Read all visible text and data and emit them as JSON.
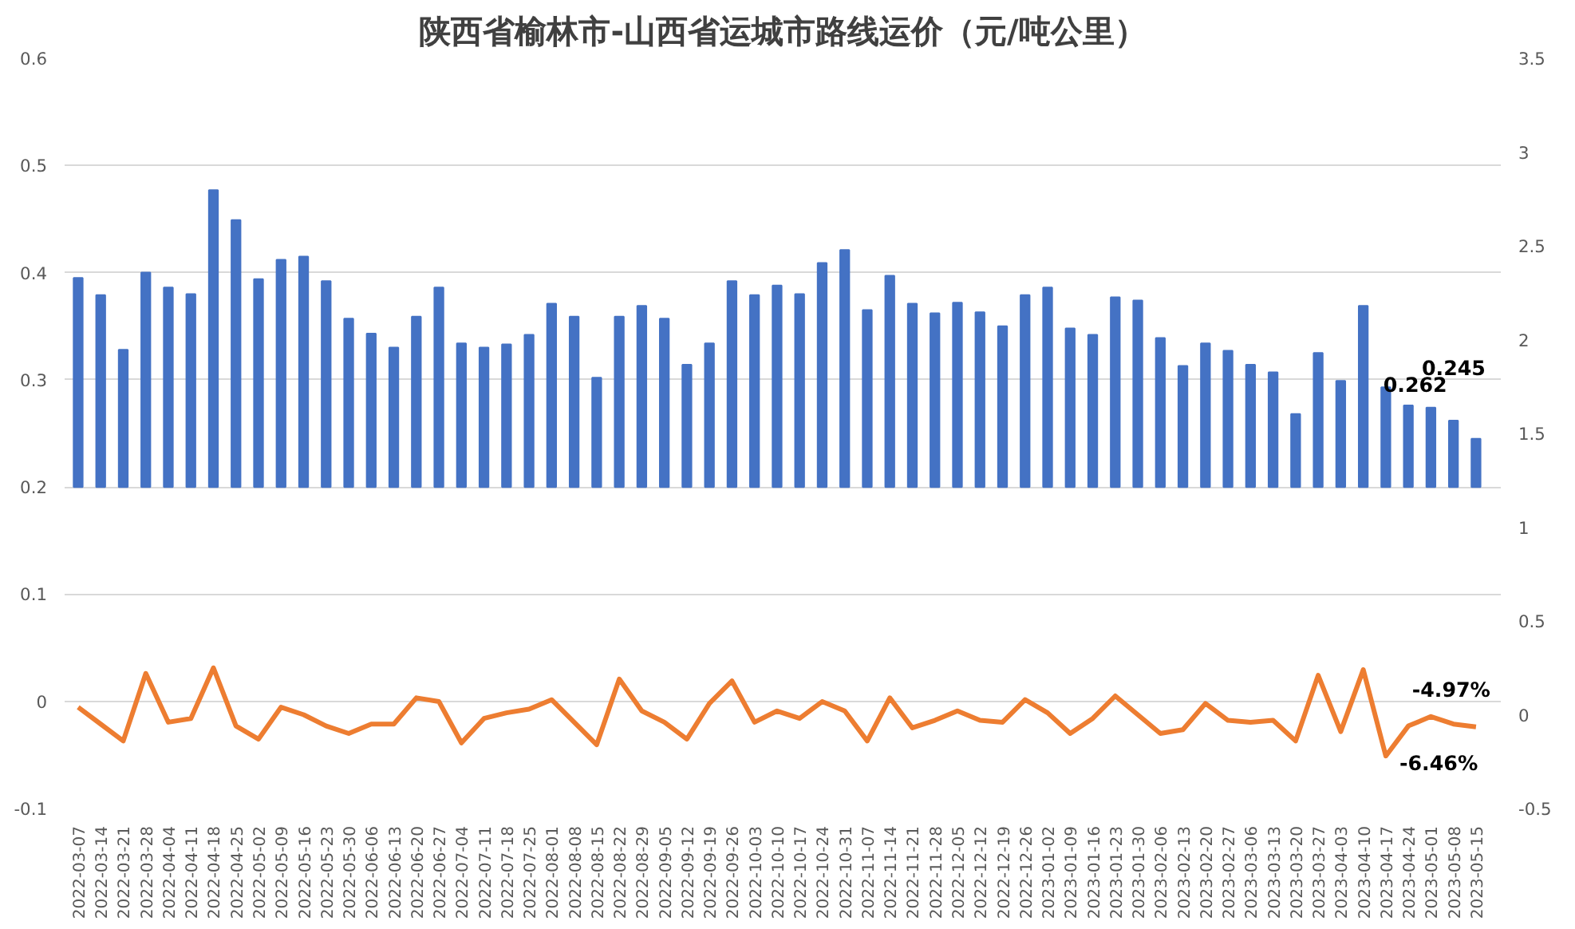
{
  "chart_data": {
    "type": "bar",
    "title": "陕西省榆林市-山西省运城市路线运价（元/吨公里）",
    "categories": [
      "2022-03-07",
      "2022-03-14",
      "2022-03-21",
      "2022-03-28",
      "2022-04-04",
      "2022-04-11",
      "2022-04-18",
      "2022-04-25",
      "2022-05-02",
      "2022-05-09",
      "2022-05-16",
      "2022-05-23",
      "2022-05-30",
      "2022-06-06",
      "2022-06-13",
      "2022-06-20",
      "2022-06-27",
      "2022-07-04",
      "2022-07-11",
      "2022-07-18",
      "2022-07-25",
      "2022-08-01",
      "2022-08-08",
      "2022-08-15",
      "2022-08-22",
      "2022-08-29",
      "2022-09-05",
      "2022-09-12",
      "2022-09-19",
      "2022-09-26",
      "2022-10-03",
      "2022-10-10",
      "2022-10-17",
      "2022-10-24",
      "2022-10-31",
      "2022-11-07",
      "2022-11-14",
      "2022-11-21",
      "2022-11-28",
      "2022-12-05",
      "2022-12-12",
      "2022-12-19",
      "2022-12-26",
      "2023-01-02",
      "2023-01-09",
      "2023-01-16",
      "2023-01-23",
      "2023-01-30",
      "2023-02-06",
      "2023-02-13",
      "2023-02-20",
      "2023-02-27",
      "2023-03-06",
      "2023-03-13",
      "2023-03-20",
      "2023-03-27",
      "2023-04-03",
      "2023-04-10",
      "2023-04-17",
      "2023-04-24",
      "2023-05-01",
      "2023-05-08",
      "2023-05-15"
    ],
    "series": [
      {
        "color": "#4472c4",
        "base": [
          0.2,
          0.2,
          0.2,
          0.2,
          0.2,
          0.2,
          0.2,
          0.2,
          0.2,
          0.2,
          0.2,
          0.2,
          0.2,
          0.2,
          0.2,
          0.2,
          0.2,
          0.2,
          0.2,
          0.2,
          0.2,
          0.2,
          0.2,
          0.2,
          0.2,
          0.2,
          0.2,
          0.2,
          0.2,
          0.2,
          0.2,
          0.2,
          0.2,
          0.2,
          0.2,
          0.2,
          0.2,
          0.2,
          0.2,
          0.2,
          0.2,
          0.2,
          0.2,
          0.2,
          0.2,
          0.2,
          0.2,
          0.2,
          0.2,
          0.2,
          0.2,
          0.2,
          0.2,
          0.2,
          0.2,
          0.2,
          0.2,
          0.2,
          0.2,
          0.2,
          0.2,
          0.2,
          0.2
        ],
        "values": [
          0.195,
          0.179,
          0.128,
          0.2,
          0.186,
          0.18,
          0.277,
          0.249,
          0.194,
          0.212,
          0.215,
          0.192,
          0.157,
          0.143,
          0.13,
          0.159,
          0.186,
          0.134,
          0.13,
          0.133,
          0.142,
          0.171,
          0.159,
          0.102,
          0.159,
          0.169,
          0.157,
          0.114,
          0.134,
          0.192,
          0.179,
          0.188,
          0.18,
          0.209,
          0.221,
          0.165,
          0.197,
          0.171,
          0.162,
          0.172,
          0.163,
          0.15,
          0.179,
          0.186,
          0.148,
          0.142,
          0.177,
          0.174,
          0.139,
          0.113,
          0.134,
          0.127,
          0.114,
          0.107,
          0.068,
          0.125,
          0.099,
          0.169,
          0.093,
          0.076,
          0.074,
          0.062,
          0.045
        ]
      },
      {
        "type": "line",
        "axis": "y2",
        "color": "#ed7d31",
        "values": [
          0.04,
          -0.05,
          -0.14,
          0.22,
          -0.04,
          -0.02,
          0.25,
          -0.06,
          -0.13,
          0.04,
          0.0,
          -0.06,
          -0.1,
          -0.05,
          -0.05,
          0.09,
          0.07,
          -0.15,
          -0.02,
          0.01,
          0.03,
          0.08,
          -0.04,
          -0.16,
          0.19,
          0.02,
          -0.04,
          -0.13,
          0.06,
          0.18,
          -0.04,
          0.02,
          -0.02,
          0.07,
          0.02,
          -0.14,
          0.09,
          -0.07,
          -0.03,
          0.02,
          -0.03,
          -0.04,
          0.08,
          0.01,
          -0.1,
          -0.02,
          0.1,
          0.0,
          -0.1,
          -0.08,
          0.06,
          -0.03,
          -0.04,
          -0.03,
          -0.14,
          0.21,
          -0.09,
          0.24,
          -0.22,
          -0.06,
          -0.01,
          -0.0497,
          -0.0646
        ]
      }
    ],
    "annotations": [
      {
        "text": "0.262",
        "x": "2023-05-08",
        "y": 0.262
      },
      {
        "text": "0.245",
        "x": "2023-05-15",
        "y": 0.245
      },
      "-4.97%",
      "-6.46%"
    ],
    "ylim": [
      -0.1,
      0.6
    ],
    "yticks": [
      -0.1,
      0,
      0.1,
      0.2,
      0.3,
      0.4,
      0.5,
      0.6
    ],
    "y2lim": [
      -0.5,
      3.5
    ],
    "y2ticks": [
      -0.5,
      0,
      0.5,
      1,
      1.5,
      2,
      2.5,
      3,
      3.5
    ],
    "grid": "y"
  }
}
